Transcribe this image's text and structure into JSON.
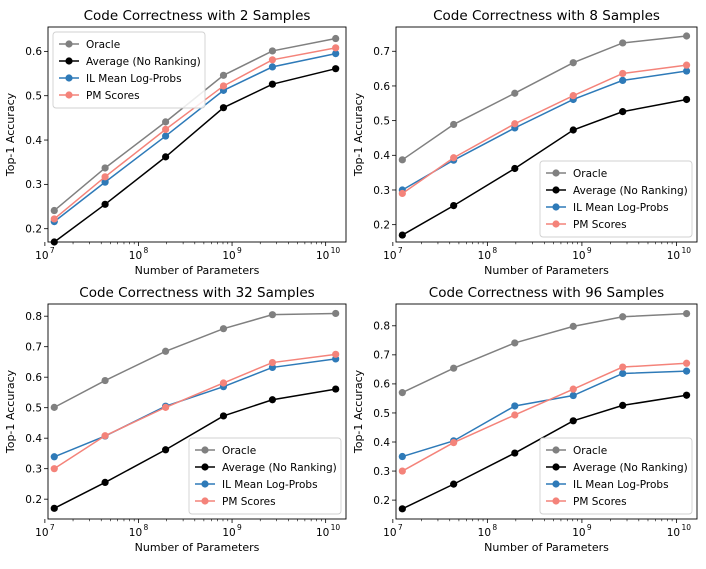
{
  "chart_data": [
    {
      "type": "line",
      "title": "Code Correctness with 2 Samples",
      "xlabel": "Number of Parameters",
      "ylabel": "Top-1 Accuracy",
      "xscale": "log",
      "x": [
        12600000,
        44000000,
        195000000,
        810000000,
        2700000000,
        12800000000
      ],
      "xlim": [
        10800000,
        16500000000
      ],
      "ylim": [
        0.17,
        0.655
      ],
      "yticks": [
        0.2,
        0.3,
        0.4,
        0.5,
        0.6
      ],
      "ytick_labels": [
        "0.2",
        "0.3",
        "0.4",
        "0.5",
        "0.6"
      ],
      "xtick_labels": [
        "10",
        "10",
        "10",
        "10"
      ],
      "xtick_exponents": [
        "7",
        "8",
        "9",
        "10"
      ],
      "legend_position": "upper-left",
      "series": [
        {
          "name": "Oracle",
          "color": "#808080",
          "values": [
            0.241,
            0.337,
            0.441,
            0.546,
            0.601,
            0.629
          ]
        },
        {
          "name": "Average (No Ranking)",
          "color": "#000000",
          "values": [
            0.17,
            0.255,
            0.362,
            0.473,
            0.526,
            0.561
          ]
        },
        {
          "name": "IL Mean Log-Probs",
          "color": "#2e7ab8",
          "values": [
            0.216,
            0.305,
            0.409,
            0.512,
            0.565,
            0.595
          ]
        },
        {
          "name": "PM Scores",
          "color": "#f4837a",
          "values": [
            0.222,
            0.317,
            0.424,
            0.522,
            0.581,
            0.608
          ]
        }
      ]
    },
    {
      "type": "line",
      "title": "Code Correctness with 8 Samples",
      "xlabel": "Number of Parameters",
      "ylabel": "Top-1 Accuracy",
      "xscale": "log",
      "x": [
        12600000,
        44000000,
        195000000,
        810000000,
        2700000000,
        12800000000
      ],
      "xlim": [
        10800000,
        16500000000
      ],
      "ylim": [
        0.15,
        0.77
      ],
      "yticks": [
        0.2,
        0.3,
        0.4,
        0.5,
        0.6,
        0.7
      ],
      "ytick_labels": [
        "0.2",
        "0.3",
        "0.4",
        "0.5",
        "0.6",
        "0.7"
      ],
      "xtick_labels": [
        "10",
        "10",
        "10",
        "10"
      ],
      "xtick_exponents": [
        "7",
        "8",
        "9",
        "10"
      ],
      "legend_position": "lower-right",
      "series": [
        {
          "name": "Oracle",
          "color": "#808080",
          "values": [
            0.387,
            0.489,
            0.579,
            0.667,
            0.724,
            0.744
          ]
        },
        {
          "name": "Average (No Ranking)",
          "color": "#000000",
          "values": [
            0.17,
            0.255,
            0.362,
            0.473,
            0.526,
            0.561
          ]
        },
        {
          "name": "IL Mean Log-Probs",
          "color": "#2e7ab8",
          "values": [
            0.3,
            0.386,
            0.479,
            0.561,
            0.616,
            0.643
          ]
        },
        {
          "name": "PM Scores",
          "color": "#f4837a",
          "values": [
            0.29,
            0.393,
            0.491,
            0.572,
            0.636,
            0.66
          ]
        }
      ]
    },
    {
      "type": "line",
      "title": "Code Correctness with 32 Samples",
      "xlabel": "Number of Parameters",
      "ylabel": "Top-1 Accuracy",
      "xscale": "log",
      "x": [
        12600000,
        44000000,
        195000000,
        810000000,
        2700000000,
        12800000000
      ],
      "xlim": [
        10800000,
        16500000000
      ],
      "ylim": [
        0.135,
        0.84
      ],
      "yticks": [
        0.2,
        0.3,
        0.4,
        0.5,
        0.6,
        0.7,
        0.8
      ],
      "ytick_labels": [
        "0.2",
        "0.3",
        "0.4",
        "0.5",
        "0.6",
        "0.7",
        "0.8"
      ],
      "xtick_labels": [
        "10",
        "10",
        "10",
        "10"
      ],
      "xtick_exponents": [
        "7",
        "8",
        "9",
        "10"
      ],
      "legend_position": "lower-right",
      "series": [
        {
          "name": "Oracle",
          "color": "#808080",
          "values": [
            0.501,
            0.589,
            0.685,
            0.759,
            0.805,
            0.809
          ]
        },
        {
          "name": "Average (No Ranking)",
          "color": "#000000",
          "values": [
            0.17,
            0.255,
            0.362,
            0.473,
            0.526,
            0.561
          ]
        },
        {
          "name": "IL Mean Log-Probs",
          "color": "#2e7ab8",
          "values": [
            0.339,
            0.407,
            0.505,
            0.569,
            0.632,
            0.66
          ]
        },
        {
          "name": "PM Scores",
          "color": "#f4837a",
          "values": [
            0.3,
            0.408,
            0.501,
            0.581,
            0.648,
            0.675
          ]
        }
      ]
    },
    {
      "type": "line",
      "title": "Code Correctness with 96 Samples",
      "xlabel": "Number of Parameters",
      "ylabel": "Top-1 Accuracy",
      "xscale": "log",
      "x": [
        12600000,
        44000000,
        195000000,
        810000000,
        2700000000,
        12800000000
      ],
      "xlim": [
        10800000,
        16500000000
      ],
      "ylim": [
        0.135,
        0.875
      ],
      "yticks": [
        0.2,
        0.3,
        0.4,
        0.5,
        0.6,
        0.7,
        0.8
      ],
      "ytick_labels": [
        "0.2",
        "0.3",
        "0.4",
        "0.5",
        "0.6",
        "0.7",
        "0.8"
      ],
      "xtick_labels": [
        "10",
        "10",
        "10",
        "10"
      ],
      "xtick_exponents": [
        "7",
        "8",
        "9",
        "10"
      ],
      "legend_position": "lower-right",
      "series": [
        {
          "name": "Oracle",
          "color": "#808080",
          "values": [
            0.57,
            0.654,
            0.741,
            0.798,
            0.831,
            0.842
          ]
        },
        {
          "name": "Average (No Ranking)",
          "color": "#000000",
          "values": [
            0.17,
            0.255,
            0.362,
            0.473,
            0.526,
            0.561
          ]
        },
        {
          "name": "IL Mean Log-Probs",
          "color": "#2e7ab8",
          "values": [
            0.35,
            0.404,
            0.524,
            0.56,
            0.636,
            0.644
          ]
        },
        {
          "name": "PM Scores",
          "color": "#f4837a",
          "values": [
            0.3,
            0.398,
            0.493,
            0.582,
            0.658,
            0.671
          ]
        }
      ]
    }
  ]
}
